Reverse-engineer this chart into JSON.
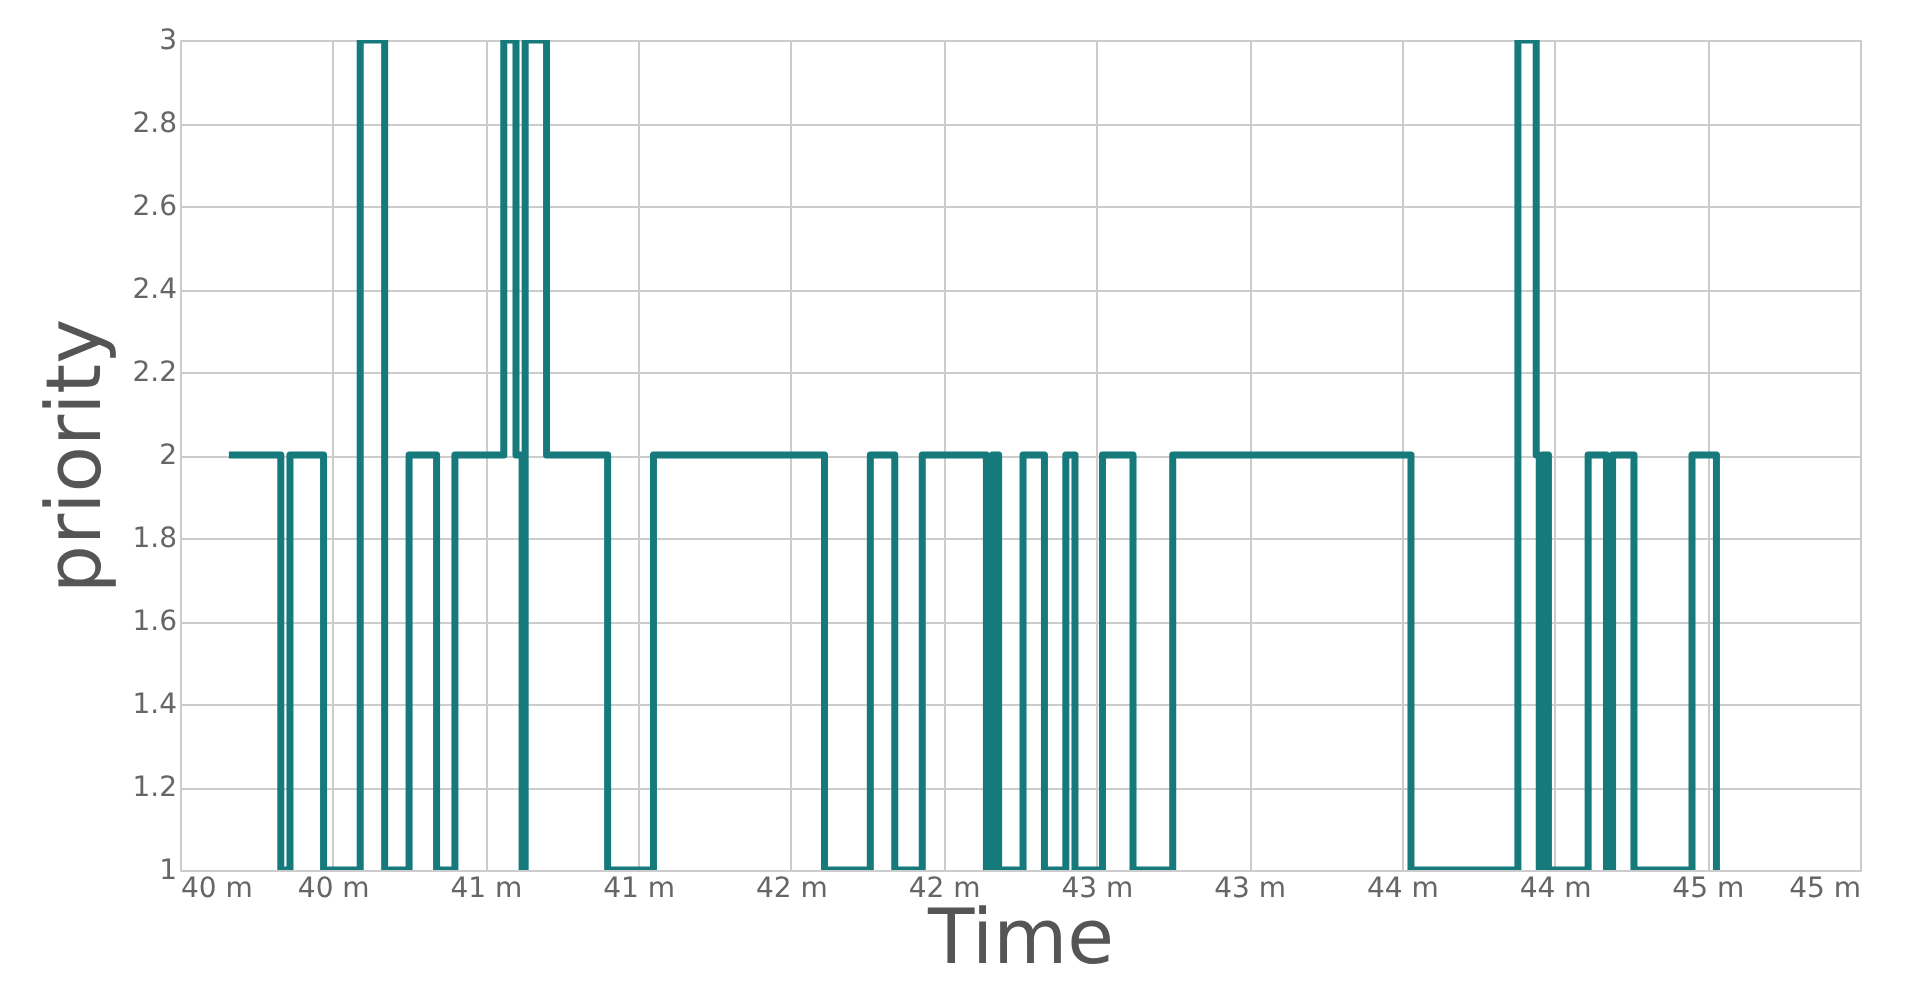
{
  "chart_data": {
    "type": "step",
    "xlabel": "Time",
    "ylabel": "priority",
    "x": [
      40.16,
      40.33,
      40.36,
      40.47,
      40.59,
      40.67,
      40.75,
      40.84,
      40.9,
      41.06,
      41.1,
      41.12,
      41.13,
      41.2,
      41.4,
      41.55,
      42.11,
      42.26,
      42.34,
      42.43,
      42.64,
      42.66,
      42.68,
      42.76,
      42.83,
      42.9,
      42.93,
      43.02,
      43.12,
      43.25,
      44.03,
      44.38,
      44.44,
      44.45,
      44.46,
      44.48,
      44.61,
      44.67,
      44.69,
      44.76,
      44.95,
      45.03
    ],
    "series": [
      {
        "color": "#167a7c",
        "values": [
          2,
          1,
          2,
          1,
          3,
          1,
          2,
          1,
          2,
          3,
          2,
          1,
          3,
          2,
          1,
          2,
          1,
          2,
          1,
          2,
          1,
          2,
          1,
          2,
          1,
          2,
          1,
          2,
          1,
          2,
          1,
          3,
          2,
          1,
          2,
          1,
          2,
          1,
          2,
          1,
          2,
          1
        ]
      }
    ],
    "xlim": [
      40,
      45.5
    ],
    "xticks": [
      {
        "value": 40,
        "label": "40 m"
      },
      {
        "value": 40.5,
        "label": "40 m"
      },
      {
        "value": 41,
        "label": "41 m"
      },
      {
        "value": 41.5,
        "label": "41 m"
      },
      {
        "value": 42,
        "label": "42 m"
      },
      {
        "value": 42.5,
        "label": "42 m"
      },
      {
        "value": 43,
        "label": "43 m"
      },
      {
        "value": 43.5,
        "label": "43 m"
      },
      {
        "value": 44,
        "label": "44 m"
      },
      {
        "value": 44.5,
        "label": "44 m"
      },
      {
        "value": 45,
        "label": "45 m"
      },
      {
        "value": 45.5,
        "label": "45 m"
      }
    ],
    "ylim": [
      1,
      3
    ],
    "yticks": [
      1,
      1.2,
      1.4,
      1.6,
      1.8,
      2,
      2.2,
      2.4,
      2.6,
      2.8,
      3
    ],
    "grid": true,
    "marker": "none",
    "line_style": "solid"
  }
}
